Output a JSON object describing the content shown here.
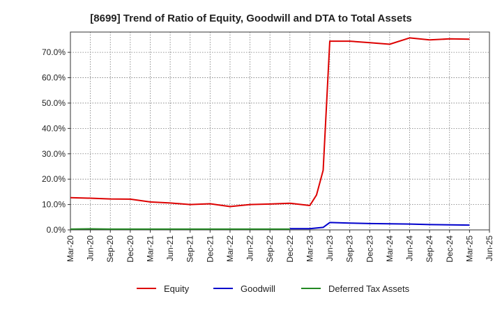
{
  "chart_data": {
    "type": "line",
    "title": "[8699]  Trend of Ratio of Equity, Goodwill and DTA to Total Assets",
    "xlabel": "",
    "ylabel": "",
    "x_ticks": [
      "Mar-20",
      "Jun-20",
      "Sep-20",
      "Dec-20",
      "Mar-21",
      "Jun-21",
      "Sep-21",
      "Dec-21",
      "Mar-22",
      "Jun-22",
      "Sep-22",
      "Dec-22",
      "Mar-23",
      "Jun-23",
      "Sep-23",
      "Dec-23",
      "Mar-24",
      "Jun-24",
      "Sep-24",
      "Dec-24",
      "Mar-25",
      "Jun-25"
    ],
    "y_ticks": [
      "0.0%",
      "10.0%",
      "20.0%",
      "30.0%",
      "40.0%",
      "50.0%",
      "60.0%",
      "70.0%"
    ],
    "ylim": [
      0,
      78
    ],
    "grid": true,
    "legend_position": "bottom",
    "series": [
      {
        "name": "Equity",
        "color": "#dd0000",
        "points": [
          [
            "Mar-20",
            12.7
          ],
          [
            "Jun-20",
            12.5
          ],
          [
            "Sep-20",
            12.2
          ],
          [
            "Dec-20",
            12.1
          ],
          [
            "Mar-21",
            11.0
          ],
          [
            "Jun-21",
            10.6
          ],
          [
            "Sep-21",
            10.0
          ],
          [
            "Dec-21",
            10.3
          ],
          [
            "Mar-22",
            9.2
          ],
          [
            "Jun-22",
            10.0
          ],
          [
            "Sep-22",
            10.2
          ],
          [
            "Dec-22",
            10.5
          ],
          [
            "Mar-23",
            9.6
          ],
          [
            "Apr-23",
            13.8
          ],
          [
            "May-23",
            23.5
          ],
          [
            "Jun-23",
            74.4
          ],
          [
            "Sep-23",
            74.4
          ],
          [
            "Dec-23",
            73.8
          ],
          [
            "Mar-24",
            73.2
          ],
          [
            "Jun-24",
            75.7
          ],
          [
            "Sep-24",
            74.9
          ],
          [
            "Dec-24",
            75.3
          ],
          [
            "Mar-25",
            75.2
          ]
        ]
      },
      {
        "name": "Goodwill",
        "color": "#0000cc",
        "points": [
          [
            "Dec-22",
            0.5
          ],
          [
            "Mar-23",
            0.5
          ],
          [
            "May-23",
            1.0
          ],
          [
            "Jun-23",
            2.9
          ],
          [
            "Sep-23",
            2.7
          ],
          [
            "Dec-23",
            2.5
          ],
          [
            "Mar-24",
            2.4
          ],
          [
            "Jun-24",
            2.3
          ],
          [
            "Sep-24",
            2.1
          ],
          [
            "Dec-24",
            2.0
          ],
          [
            "Mar-25",
            1.9
          ]
        ]
      },
      {
        "name": "Deferred Tax Assets",
        "color": "#228822",
        "points": [
          [
            "Mar-20",
            0.3
          ],
          [
            "Jun-20",
            0.4
          ],
          [
            "Sep-20",
            0.3
          ],
          [
            "Dec-20",
            0.3
          ],
          [
            "Mar-21",
            0.3
          ],
          [
            "Jun-21",
            0.3
          ],
          [
            "Sep-21",
            0.3
          ],
          [
            "Dec-21",
            0.3
          ],
          [
            "Mar-22",
            0.3
          ],
          [
            "Jun-22",
            0.3
          ],
          [
            "Sep-22",
            0.3
          ],
          [
            "Dec-22",
            0.3
          ]
        ]
      }
    ]
  }
}
